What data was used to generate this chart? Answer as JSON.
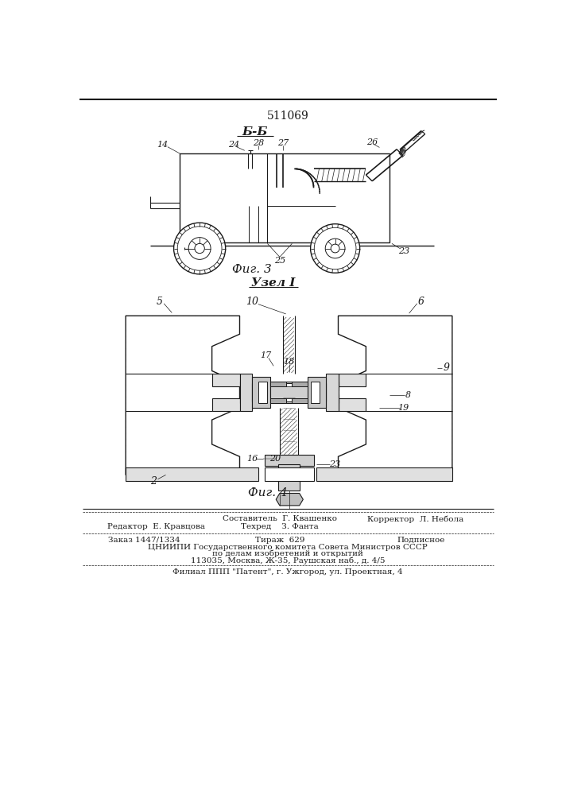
{
  "patent_number": "511069",
  "fig3_label": "Б-Б",
  "fig3_caption": "Фиг. 3",
  "fig4_label": "Узел I",
  "fig4_caption": "Фиг. 4",
  "footer_line1_left": "Редактор  Е. Кравцова",
  "footer_line1_center_top": "Составитель  Г. Квашенко",
  "footer_line1_center_bot": "Техред    З. Фанта",
  "footer_line1_right": "Корректор  Л. Небола",
  "footer_line2_left": "Заказ 1447/1334",
  "footer_line2_center": "Тираж  629",
  "footer_line2_right": "Подписное",
  "footer_line3": "ЦНИИПИ Государственного комитета Совета Министров СССР",
  "footer_line4": "по делам изобретений и открытий",
  "footer_line5": "113035, Москва, Ж-35, Раушская наб., д. 4/5",
  "footer_line6": "Филиал ППП \"Патент\", г. Ужгород, ул. Проектная, 4",
  "bg_color": "#ffffff",
  "line_color": "#1a1a1a",
  "hatch_color": "#333333"
}
